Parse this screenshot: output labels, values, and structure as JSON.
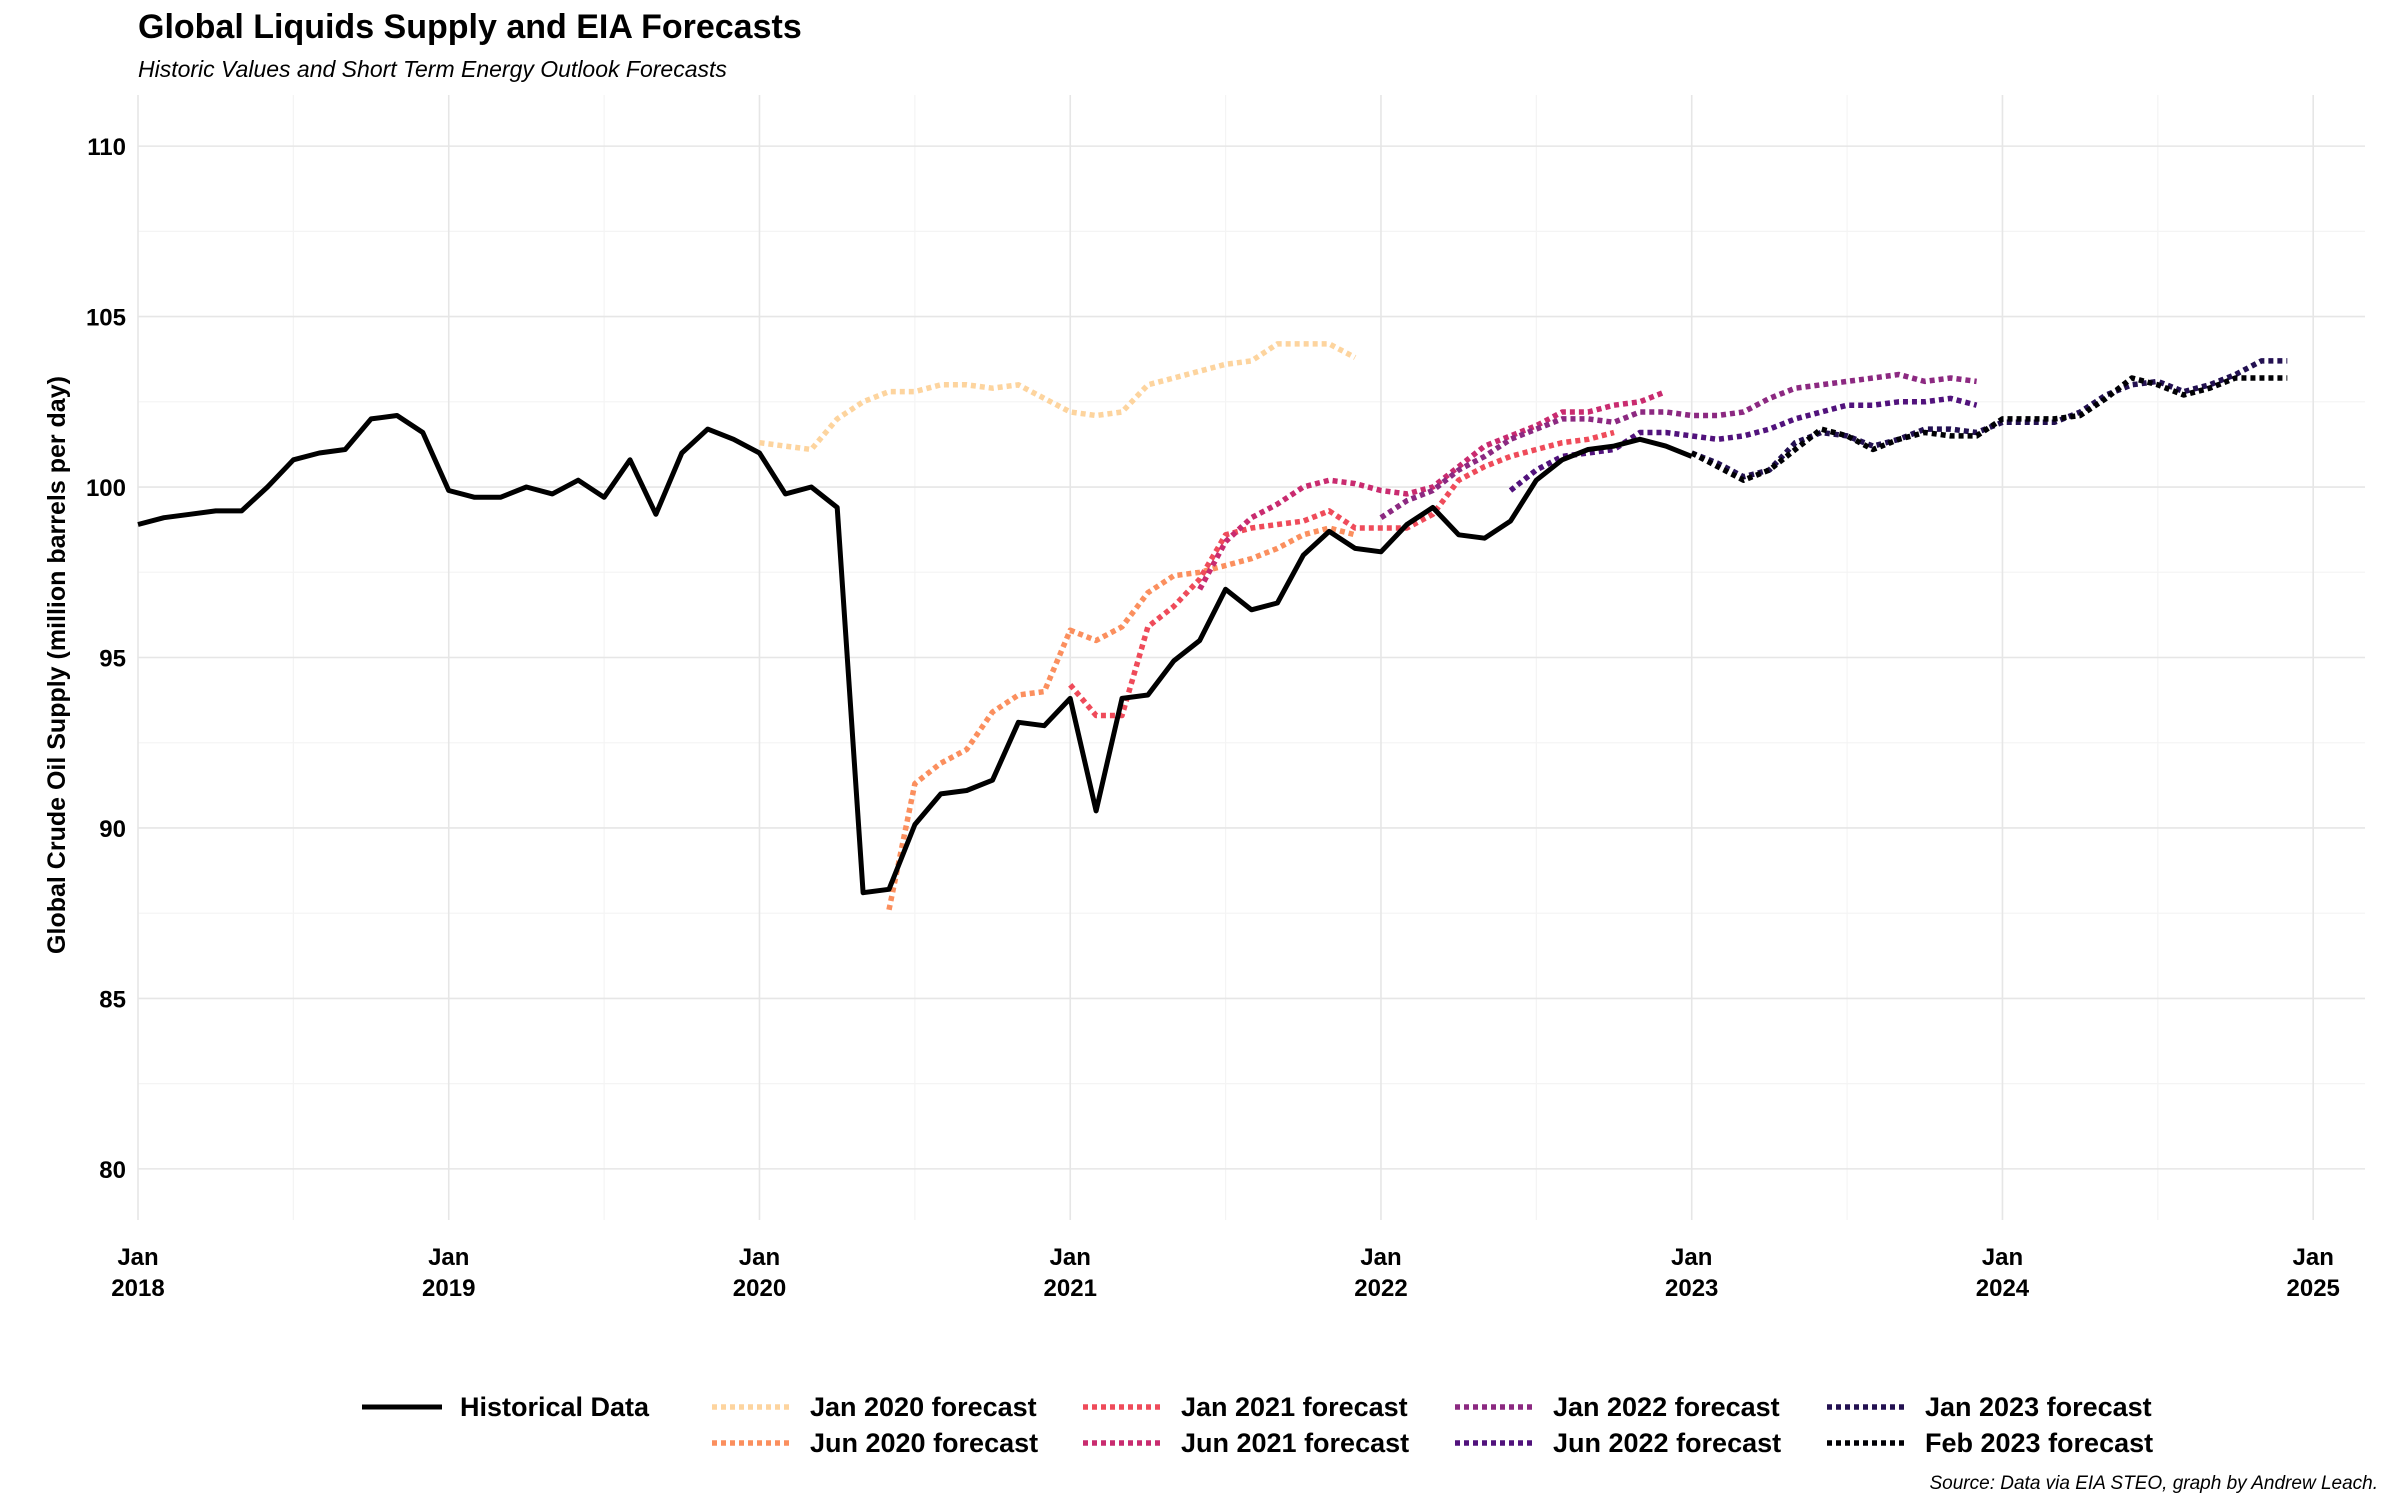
{
  "chart_data": {
    "type": "line",
    "title": "Global Liquids Supply and EIA Forecasts",
    "subtitle": "Historic Values and Short Term Energy Outlook Forecasts",
    "ylabel": "Global Crude Oil Supply (million barrels per day)",
    "xlabel": "",
    "caption": "Source: Data via EIA STEO, graph by Andrew Leach.",
    "ylim": [
      78.5,
      111.5
    ],
    "xlim": [
      "2018-01",
      "2025-03"
    ],
    "yticks": [
      80,
      85,
      90,
      95,
      100,
      105,
      110
    ],
    "xticks": [
      {
        "date": "2018-01",
        "label": "Jan",
        "year": "2018"
      },
      {
        "date": "2019-01",
        "label": "Jan",
        "year": "2019"
      },
      {
        "date": "2020-01",
        "label": "Jan",
        "year": "2020"
      },
      {
        "date": "2021-01",
        "label": "Jan",
        "year": "2021"
      },
      {
        "date": "2022-01",
        "label": "Jan",
        "year": "2022"
      },
      {
        "date": "2023-01",
        "label": "Jan",
        "year": "2023"
      },
      {
        "date": "2024-01",
        "label": "Jan",
        "year": "2024"
      },
      {
        "date": "2025-01",
        "label": "Jan",
        "year": "2025"
      }
    ],
    "grid": true,
    "legend_position": "bottom",
    "series": [
      {
        "name": "Historical Data",
        "color": "#000000",
        "style": "solid",
        "start": "2018-01",
        "values": [
          98.9,
          99.1,
          99.2,
          99.3,
          99.3,
          100.0,
          100.8,
          101.0,
          101.1,
          102.0,
          102.1,
          101.6,
          99.9,
          99.7,
          99.7,
          100.0,
          99.8,
          100.2,
          99.7,
          100.8,
          99.2,
          101.0,
          101.7,
          101.4,
          101.0,
          99.8,
          100.0,
          99.4,
          88.1,
          88.2,
          90.1,
          91.0,
          91.1,
          91.4,
          93.1,
          93.0,
          93.8,
          90.5,
          93.8,
          93.9,
          94.9,
          95.5,
          97.0,
          96.4,
          96.6,
          98.0,
          98.7,
          98.2,
          98.1,
          98.9,
          99.4,
          98.6,
          98.5,
          99.0,
          100.2,
          100.8,
          101.1,
          101.2,
          101.4,
          101.2,
          100.9
        ]
      },
      {
        "name": "Jan 2020 forecast",
        "color": "#FDD49E",
        "style": "dotted",
        "start": "2020-01",
        "values": [
          101.3,
          101.2,
          101.1,
          102.0,
          102.5,
          102.8,
          102.8,
          103.0,
          103.0,
          102.9,
          103.0,
          102.6,
          102.2,
          102.1,
          102.2,
          103.0,
          103.2,
          103.4,
          103.6,
          103.7,
          104.2,
          104.2,
          104.2,
          103.8
        ]
      },
      {
        "name": "Jun 2020 forecast",
        "color": "#FB8F5E",
        "style": "dotted",
        "start": "2020-06",
        "values": [
          87.6,
          91.3,
          91.9,
          92.3,
          93.4,
          93.9,
          94.0,
          95.8,
          95.5,
          95.9,
          96.9,
          97.4,
          97.5,
          97.7,
          97.9,
          98.2,
          98.6,
          98.8,
          98.6
        ]
      },
      {
        "name": "Jan 2021 forecast",
        "color": "#EF4B5A",
        "style": "dotted",
        "start": "2021-01",
        "values": [
          94.2,
          93.3,
          93.3,
          95.9,
          96.5,
          97.3,
          98.6,
          98.8,
          98.9,
          99.0,
          99.3,
          98.8,
          98.8,
          98.8,
          99.2,
          100.2,
          100.6,
          100.9,
          101.1,
          101.3,
          101.4,
          101.6
        ]
      },
      {
        "name": "Jun 2021 forecast",
        "color": "#C92B6F",
        "style": "dotted",
        "start": "2021-06",
        "values": [
          97.0,
          98.4,
          99.1,
          99.5,
          100.0,
          100.2,
          100.1,
          99.9,
          99.8,
          100.0,
          100.6,
          101.2,
          101.5,
          101.8,
          102.2,
          102.2,
          102.4,
          102.5,
          102.8
        ]
      },
      {
        "name": "Jan 2022 forecast",
        "color": "#8C2981",
        "style": "dotted",
        "start": "2022-01",
        "values": [
          99.1,
          99.6,
          99.9,
          100.5,
          100.9,
          101.4,
          101.7,
          102.0,
          102.0,
          101.9,
          102.2,
          102.2,
          102.1,
          102.1,
          102.2,
          102.6,
          102.9,
          103.0,
          103.1,
          103.2,
          103.3,
          103.1,
          103.2,
          103.1
        ]
      },
      {
        "name": "Jun 2022 forecast",
        "color": "#51127C",
        "style": "dotted",
        "start": "2022-06",
        "values": [
          99.9,
          100.5,
          100.9,
          101.0,
          101.1,
          101.6,
          101.6,
          101.5,
          101.4,
          101.5,
          101.7,
          102.0,
          102.2,
          102.4,
          102.4,
          102.5,
          102.5,
          102.6,
          102.4
        ]
      },
      {
        "name": "Jan 2023 forecast",
        "color": "#231151",
        "style": "dotted",
        "start": "2023-01",
        "values": [
          101.0,
          100.7,
          100.3,
          100.5,
          101.3,
          101.6,
          101.5,
          101.2,
          101.4,
          101.7,
          101.7,
          101.6,
          101.9,
          101.9,
          101.9,
          102.2,
          102.7,
          103.0,
          103.1,
          102.8,
          103.0,
          103.3,
          103.7,
          103.7
        ]
      },
      {
        "name": "Feb 2023 forecast",
        "color": "#000004",
        "style": "dotted",
        "start": "2023-01",
        "values": [
          101.0,
          100.6,
          100.2,
          100.5,
          101.1,
          101.7,
          101.5,
          101.1,
          101.4,
          101.6,
          101.5,
          101.5,
          102.0,
          102.0,
          102.0,
          102.1,
          102.6,
          103.2,
          103.0,
          102.7,
          102.9,
          103.2,
          103.2,
          103.2
        ]
      }
    ]
  }
}
